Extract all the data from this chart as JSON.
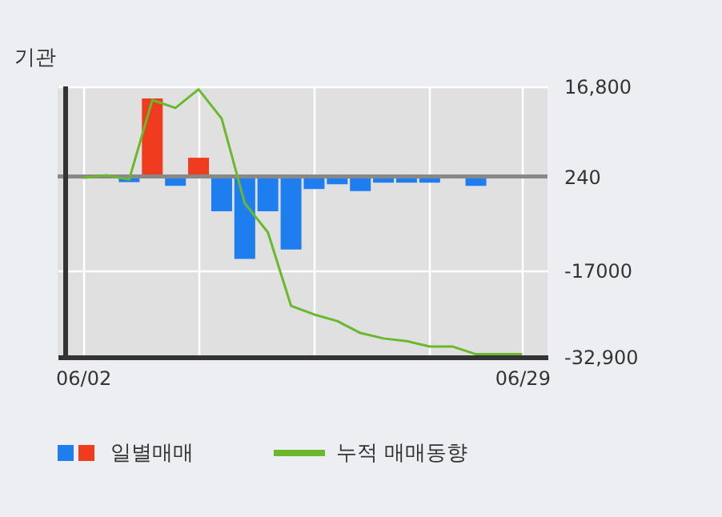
{
  "chart_data": {
    "type": "bar",
    "title": "기관",
    "categories": [
      "06/02",
      null,
      null,
      null,
      null,
      null,
      null,
      null,
      null,
      null,
      null,
      null,
      null,
      null,
      null,
      null,
      null,
      null,
      null,
      "06/29"
    ],
    "series": [
      {
        "name": "일별매매",
        "colors": [
          "#1e7ef0",
          "#1e7ef0",
          "#1e7ef0",
          "#f03c1e",
          "#1e7ef0",
          "#f03c1e",
          "#1e7ef0",
          "#1e7ef0",
          "#1e7ef0",
          "#1e7ef0",
          "#1e7ef0",
          "#1e7ef0",
          "#1e7ef0",
          "#1e7ef0",
          "#1e7ef0",
          "#1e7ef0",
          "#1e7ef0",
          "#1e7ef0",
          "#1e7ef0",
          "#1e7ef0"
        ],
        "values": [
          0,
          0,
          -780,
          14600,
          -1460,
          3700,
          -6140,
          -14900,
          -6140,
          -13150,
          -2050,
          -1170,
          -2430,
          -880,
          -880,
          -880,
          0,
          -1460,
          0,
          0
        ]
      },
      {
        "name": "누적 매매동향",
        "type": "line",
        "color": "#6ab82c",
        "values": [
          0,
          490,
          -290,
          14300,
          12860,
          16270,
          10900,
          -4680,
          -10000,
          -23500,
          -25100,
          -26300,
          -28500,
          -29500,
          -30000,
          -31000,
          -31000,
          -32400,
          -32400,
          -32400
        ]
      }
    ],
    "ylim": [
      -32900,
      16800
    ],
    "yticks": [
      {
        "value": 16800,
        "label": "16,800"
      },
      240,
      {
        "value": -17000,
        "label": "-17000"
      },
      {
        "value": -32900,
        "label": "-32,900"
      }
    ],
    "ref_lines": [
      {
        "axis": "y",
        "value": 240,
        "color": "#888888"
      }
    ],
    "grid": true,
    "legend": "bottom"
  }
}
